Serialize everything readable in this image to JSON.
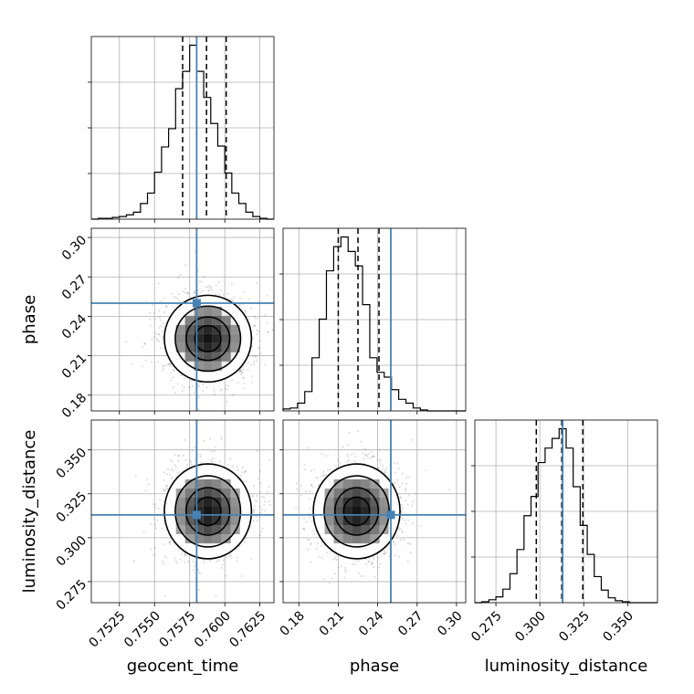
{
  "chart_data": {
    "type": "corner",
    "parameters": [
      "geocent_time",
      "phase",
      "luminosity_distance"
    ],
    "truth": {
      "geocent_time": 0.758,
      "phase": 0.25,
      "luminosity_distance": 0.313
    },
    "truth_color": "#4682b4",
    "quantiles": {
      "geocent_time": [
        0.757,
        0.7587,
        0.7601
      ],
      "phase": [
        0.21,
        0.225,
        0.241
      ],
      "luminosity_distance": [
        0.298,
        0.3125,
        0.3245
      ]
    },
    "ranges": {
      "geocent_time": [
        0.7505,
        0.7635
      ],
      "phase": [
        0.168,
        0.307
      ],
      "luminosity_distance": [
        0.263,
        0.367
      ]
    },
    "ticks": {
      "geocent_time": {
        "values": [
          0.7525,
          0.755,
          0.7575,
          0.76,
          0.7625
        ],
        "labels": [
          "0.7525",
          "0.7550",
          "0.7575",
          "0.7600",
          "0.7625"
        ]
      },
      "phase": {
        "values": [
          0.18,
          0.21,
          0.24,
          0.27,
          0.3
        ],
        "labels": [
          "0.18",
          "0.21",
          "0.24",
          "0.27",
          "0.30"
        ]
      },
      "luminosity_distance": {
        "values": [
          0.275,
          0.3,
          0.325,
          0.35
        ],
        "labels": [
          "0.275",
          "0.300",
          "0.325",
          "0.350"
        ]
      }
    },
    "histograms": {
      "geocent_time": {
        "bins": [
          0.7505,
          0.751,
          0.7515,
          0.752,
          0.7525,
          0.753,
          0.7535,
          0.754,
          0.7545,
          0.755,
          0.7555,
          0.756,
          0.7565,
          0.757,
          0.7575,
          0.758,
          0.7585,
          0.759,
          0.7595,
          0.76,
          0.7605,
          0.761,
          0.7615,
          0.762,
          0.7625,
          0.763,
          0.7635
        ],
        "counts": [
          0,
          1,
          1,
          2,
          3,
          5,
          8,
          18,
          30,
          54,
          83,
          104,
          150,
          170,
          200,
          170,
          140,
          110,
          84,
          53,
          30,
          18,
          8,
          3,
          1,
          0
        ]
      },
      "phase": {
        "bins": [
          0.168,
          0.1735,
          0.179,
          0.1845,
          0.19,
          0.1955,
          0.201,
          0.2065,
          0.212,
          0.2175,
          0.223,
          0.2285,
          0.234,
          0.2395,
          0.245,
          0.2505,
          0.256,
          0.2615,
          0.267,
          0.2725,
          0.278,
          0.2835,
          0.289,
          0.2945,
          0.3,
          0.307
        ],
        "counts": [
          2,
          3,
          8,
          20,
          55,
          95,
          145,
          170,
          180,
          165,
          150,
          110,
          55,
          40,
          35,
          22,
          12,
          8,
          3,
          1,
          0,
          0,
          0,
          0,
          0
        ]
      },
      "luminosity_distance": {
        "bins": [
          0.263,
          0.267,
          0.271,
          0.275,
          0.279,
          0.283,
          0.287,
          0.291,
          0.295,
          0.299,
          0.303,
          0.307,
          0.311,
          0.315,
          0.319,
          0.323,
          0.327,
          0.331,
          0.335,
          0.339,
          0.343,
          0.347,
          0.351,
          0.355,
          0.359,
          0.363,
          0.367
        ],
        "counts": [
          0,
          1,
          3,
          6,
          14,
          30,
          55,
          90,
          110,
          145,
          160,
          170,
          180,
          160,
          120,
          80,
          50,
          27,
          13,
          5,
          2,
          1,
          0,
          0,
          0,
          0
        ]
      }
    },
    "panels_2d": [
      {
        "x": "geocent_time",
        "y": "phase",
        "center": [
          0.7588,
          0.223
        ],
        "sd": [
          0.00155,
          0.0165
        ],
        "level_radii_sd": [
          0.6,
          1.0,
          1.5,
          2.0
        ]
      },
      {
        "x": "geocent_time",
        "y": "luminosity_distance",
        "center": [
          0.7588,
          0.315
        ],
        "sd": [
          0.00155,
          0.0135
        ],
        "level_radii_sd": [
          0.6,
          1.0,
          1.5,
          2.0
        ]
      },
      {
        "x": "phase",
        "y": "luminosity_distance",
        "center": [
          0.224,
          0.315
        ],
        "sd": [
          0.0165,
          0.0135
        ],
        "level_radii_sd": [
          0.6,
          1.0,
          1.5,
          2.0
        ]
      }
    ],
    "grid": true
  }
}
